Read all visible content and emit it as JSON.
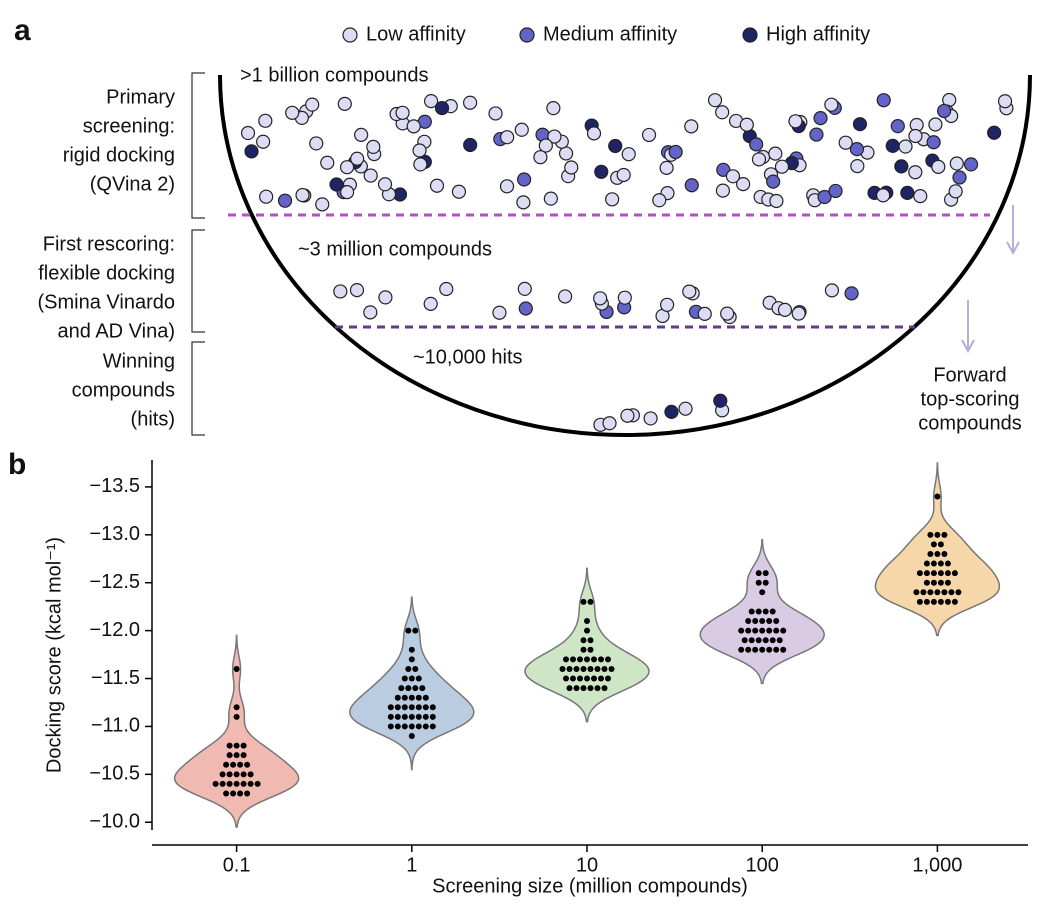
{
  "panel_a": {
    "label": "a",
    "legend": [
      {
        "name": "Low affinity",
        "color": "#dcdcf5"
      },
      {
        "name": "Medium affinity",
        "color": "#6464c8"
      },
      {
        "name": "High affinity",
        "color": "#1e2466"
      }
    ],
    "stages": [
      {
        "lines": [
          "Primary",
          "screening:",
          "rigid docking",
          "(QVina 2)"
        ],
        "count": ">1 billion compounds"
      },
      {
        "lines": [
          "First rescoring:",
          "flexible docking",
          "(Smina Vinardo",
          "and AD Vina)"
        ],
        "count": "~3 million compounds"
      },
      {
        "lines": [
          "Winning",
          "compounds",
          "(hits)"
        ],
        "count": "~10,000 hits"
      }
    ],
    "forward": [
      "Forward",
      "top-scoring",
      "compounds"
    ]
  },
  "chart_data": {
    "type": "violin",
    "label": "b",
    "y_label": "Docking score (kcal mol⁻¹)",
    "x_label": "Screening size (million compounds)",
    "categories": [
      "0.1",
      "1",
      "10",
      "100",
      "1,000"
    ],
    "ylim": [
      -9.94,
      -13.76
    ],
    "yticks": [
      {
        "value": -10.0,
        "label": "−10.0"
      },
      {
        "value": -10.5,
        "label": "−10.5"
      },
      {
        "value": -11.0,
        "label": "−11.0"
      },
      {
        "value": -11.5,
        "label": "−11.5"
      },
      {
        "value": -12.0,
        "label": "−12.0"
      },
      {
        "value": -12.5,
        "label": "−12.5"
      },
      {
        "value": -13.0,
        "label": "−13.0"
      },
      {
        "value": -13.5,
        "label": "−13.5"
      }
    ],
    "groups": [
      {
        "color": "#f0bab2",
        "values": [
          -10.3,
          -10.3,
          -10.3,
          -10.3,
          -10.4,
          -10.4,
          -10.4,
          -10.4,
          -10.4,
          -10.4,
          -10.4,
          -10.5,
          -10.5,
          -10.5,
          -10.5,
          -10.5,
          -10.6,
          -10.6,
          -10.6,
          -10.6,
          -10.7,
          -10.7,
          -10.7,
          -10.8,
          -10.8,
          -10.8,
          -11.1,
          -11.2,
          -11.6
        ]
      },
      {
        "color": "#bacde0",
        "values": [
          -10.9,
          -11.0,
          -11.0,
          -11.0,
          -11.0,
          -11.0,
          -11.0,
          -11.0,
          -11.1,
          -11.1,
          -11.1,
          -11.1,
          -11.1,
          -11.1,
          -11.1,
          -11.2,
          -11.2,
          -11.2,
          -11.2,
          -11.2,
          -11.2,
          -11.2,
          -11.3,
          -11.3,
          -11.3,
          -11.3,
          -11.3,
          -11.4,
          -11.4,
          -11.4,
          -11.4,
          -11.5,
          -11.5,
          -11.5,
          -11.6,
          -11.6,
          -11.7,
          -11.8,
          -12.0,
          -12.0
        ]
      },
      {
        "color": "#cfe6c6",
        "values": [
          -11.4,
          -11.4,
          -11.4,
          -11.4,
          -11.4,
          -11.4,
          -11.5,
          -11.5,
          -11.5,
          -11.5,
          -11.5,
          -11.5,
          -11.5,
          -11.6,
          -11.6,
          -11.6,
          -11.6,
          -11.6,
          -11.6,
          -11.6,
          -11.6,
          -11.7,
          -11.7,
          -11.7,
          -11.7,
          -11.7,
          -11.7,
          -11.7,
          -11.8,
          -11.8,
          -11.9,
          -11.9,
          -12.0,
          -12.1,
          -12.3,
          -12.3
        ]
      },
      {
        "color": "#d9cbe3",
        "values": [
          -11.8,
          -11.8,
          -11.8,
          -11.8,
          -11.8,
          -11.8,
          -11.8,
          -11.9,
          -11.9,
          -11.9,
          -11.9,
          -11.9,
          -11.9,
          -12.0,
          -12.0,
          -12.0,
          -12.0,
          -12.0,
          -12.0,
          -12.0,
          -12.1,
          -12.1,
          -12.1,
          -12.1,
          -12.1,
          -12.2,
          -12.2,
          -12.2,
          -12.2,
          -12.4,
          -12.5,
          -12.5,
          -12.6,
          -12.6
        ]
      },
      {
        "color": "#f5d7aa",
        "values": [
          -12.3,
          -12.3,
          -12.3,
          -12.3,
          -12.3,
          -12.3,
          -12.4,
          -12.4,
          -12.4,
          -12.4,
          -12.4,
          -12.4,
          -12.4,
          -12.5,
          -12.5,
          -12.5,
          -12.5,
          -12.6,
          -12.6,
          -12.6,
          -12.6,
          -12.6,
          -12.6,
          -12.7,
          -12.7,
          -12.7,
          -12.7,
          -12.8,
          -12.8,
          -12.8,
          -12.9,
          -12.9,
          -13.0,
          -13.0,
          -13.0,
          -13.4
        ]
      }
    ]
  }
}
